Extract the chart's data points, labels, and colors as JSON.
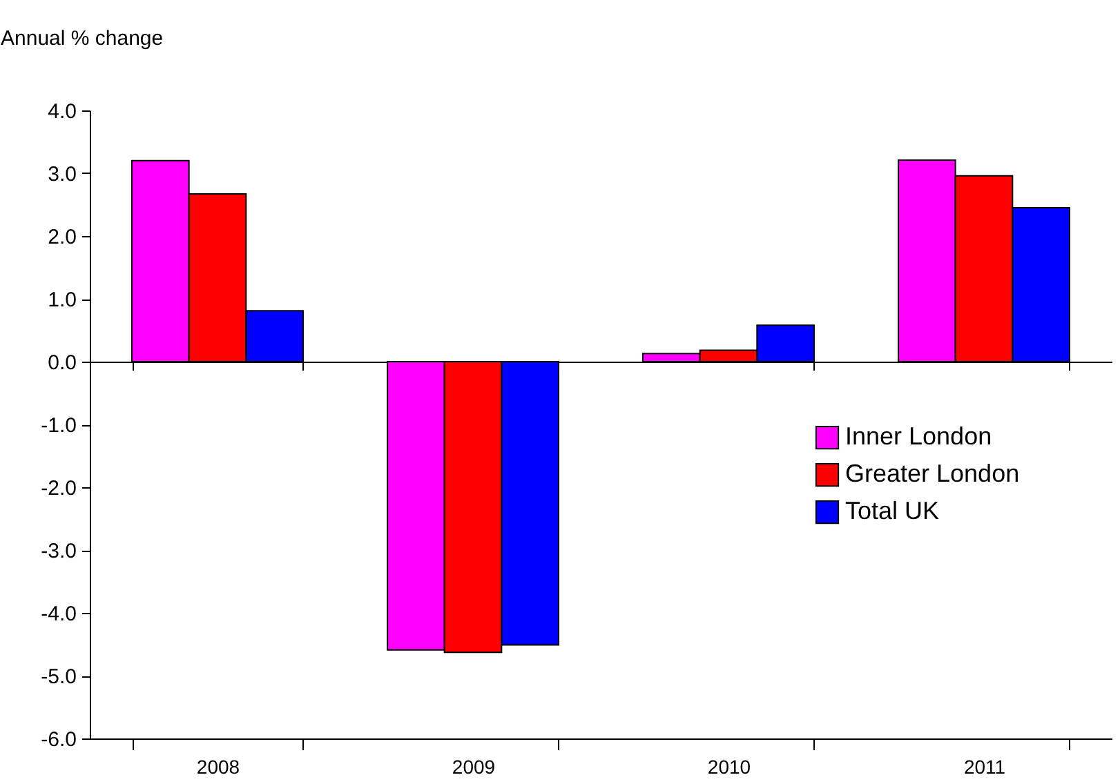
{
  "chart_data": {
    "type": "bar",
    "ylabel": "Annual % change",
    "categories": [
      "2008",
      "2009",
      "2010",
      "2011"
    ],
    "series": [
      {
        "name": "Inner London",
        "color": "#ff00ff",
        "values": [
          3.2,
          -4.59,
          0.13,
          3.21
        ]
      },
      {
        "name": "Greater London",
        "color": "#ff0000",
        "values": [
          2.67,
          -4.63,
          0.18,
          2.96
        ]
      },
      {
        "name": "Total UK",
        "color": "#0000ff",
        "values": [
          0.81,
          -4.51,
          0.58,
          2.45
        ]
      }
    ],
    "ylim": [
      -6,
      4
    ],
    "yticks": [
      {
        "value": -6,
        "label": "-6.0"
      },
      {
        "value": -5,
        "label": "-5.0"
      },
      {
        "value": -4,
        "label": "-4.0"
      },
      {
        "value": -3,
        "label": "-3.0"
      },
      {
        "value": -2,
        "label": "-2.0"
      },
      {
        "value": -1,
        "label": "-1.0"
      },
      {
        "value": 0,
        "label": "0.0"
      },
      {
        "value": 1,
        "label": "1.0"
      },
      {
        "value": 2,
        "label": "2.0"
      },
      {
        "value": 3,
        "label": "3.0"
      },
      {
        "value": 4,
        "label": "4.0"
      }
    ],
    "legend": "right"
  }
}
